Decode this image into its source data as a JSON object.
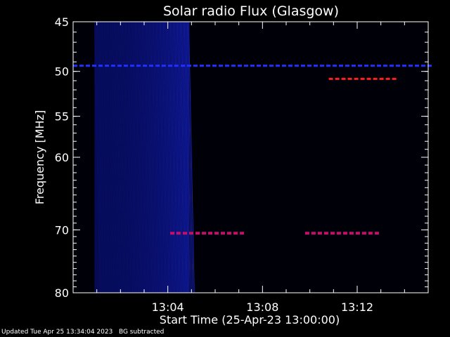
{
  "chart_data": {
    "type": "heatmap",
    "title": "Solar radio Flux (Glasgow)",
    "xlabel": "Start Time (25-Apr-23 13:00:00)",
    "ylabel": "Frequency [MHz]",
    "x_range_minutes": [
      0,
      15
    ],
    "x_ticks": [
      {
        "minute": 4,
        "label": "13:04"
      },
      {
        "minute": 8,
        "label": "13:08"
      },
      {
        "minute": 12,
        "label": "13:12"
      }
    ],
    "y_range_mhz": [
      45,
      80
    ],
    "y_scale": "log",
    "y_ticks": [
      {
        "mhz": 45,
        "label": "45"
      },
      {
        "mhz": 50,
        "label": "50"
      },
      {
        "mhz": 55,
        "label": "55"
      },
      {
        "mhz": 60,
        "label": "60"
      },
      {
        "mhz": 70,
        "label": "70"
      },
      {
        "mhz": 80,
        "label": "80"
      }
    ],
    "background_subtracted": true,
    "features": [
      {
        "kind": "broadband noise",
        "t_start_min": 0.9,
        "t_end_min": 4.9,
        "f_low_mhz": 45,
        "f_high_mhz": 80,
        "color": "#1a28d8"
      },
      {
        "kind": "interference line",
        "f_mhz": 70.5,
        "t_start_min": 4.1,
        "t_end_min": 7.3,
        "color": "#c0106a"
      },
      {
        "kind": "interference line",
        "f_mhz": 70.5,
        "t_start_min": 9.8,
        "t_end_min": 13.0,
        "color": "#c0106a"
      },
      {
        "kind": "interference line",
        "f_mhz": 50.8,
        "t_start_min": 10.8,
        "t_end_min": 13.6,
        "color": "#ff2020"
      },
      {
        "kind": "interference line",
        "f_mhz": 49.4,
        "t_start_min": 0,
        "t_end_min": 15,
        "color": "#1f2fff"
      }
    ]
  },
  "footer": {
    "updated": "Updated Tue Apr 25 13:34:04 2023",
    "note": "BG subtracted"
  }
}
